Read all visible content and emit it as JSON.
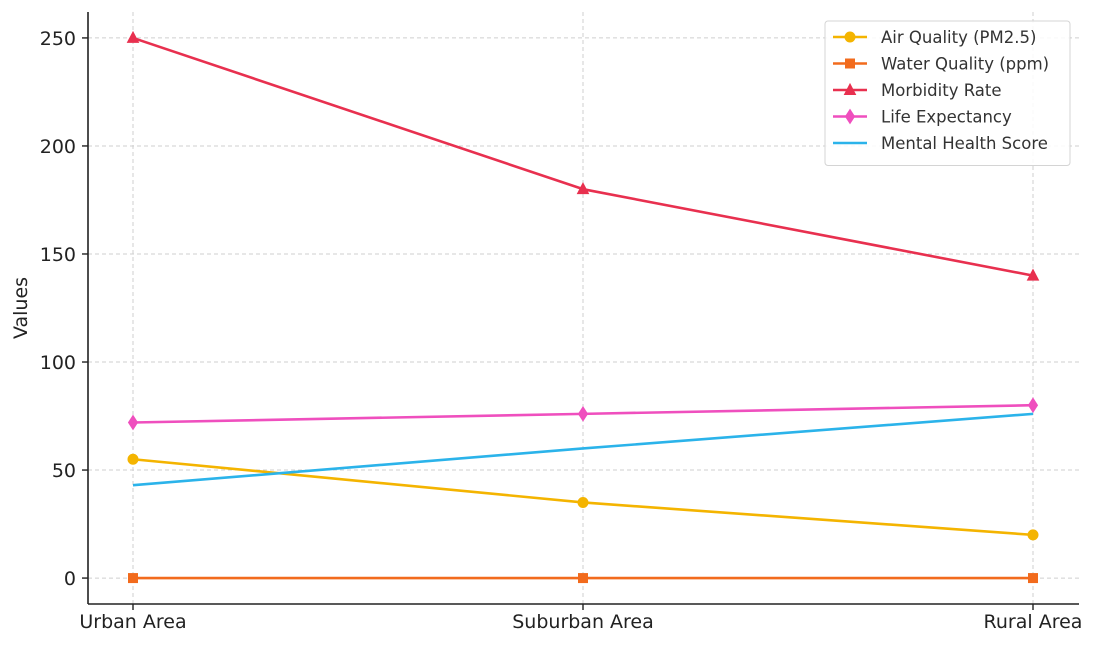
{
  "chart_data": {
    "type": "line",
    "title": "",
    "xlabel": "",
    "ylabel": "Values",
    "categories": [
      "Urban Area",
      "Suburban Area",
      "Rural Area"
    ],
    "ylim": [
      -12,
      262
    ],
    "yticks": [
      0,
      50,
      100,
      150,
      200,
      250
    ],
    "grid": true,
    "legend_position": "top-right",
    "series": [
      {
        "name": "Air Quality (PM2.5)",
        "values": [
          55,
          35,
          20
        ],
        "color": "#f4b400",
        "marker": "circle"
      },
      {
        "name": "Water Quality (ppm)",
        "values": [
          0,
          0,
          0
        ],
        "color": "#f26b1d",
        "marker": "square"
      },
      {
        "name": "Morbidity Rate",
        "values": [
          250,
          180,
          140
        ],
        "color": "#e8304f",
        "marker": "triangle"
      },
      {
        "name": "Life Expectancy",
        "values": [
          72,
          76,
          80
        ],
        "color": "#ef4fbe",
        "marker": "diamond"
      },
      {
        "name": "Mental Health Score",
        "values": [
          43,
          60,
          76
        ],
        "color": "#2bb3ea",
        "marker": "none"
      }
    ]
  }
}
